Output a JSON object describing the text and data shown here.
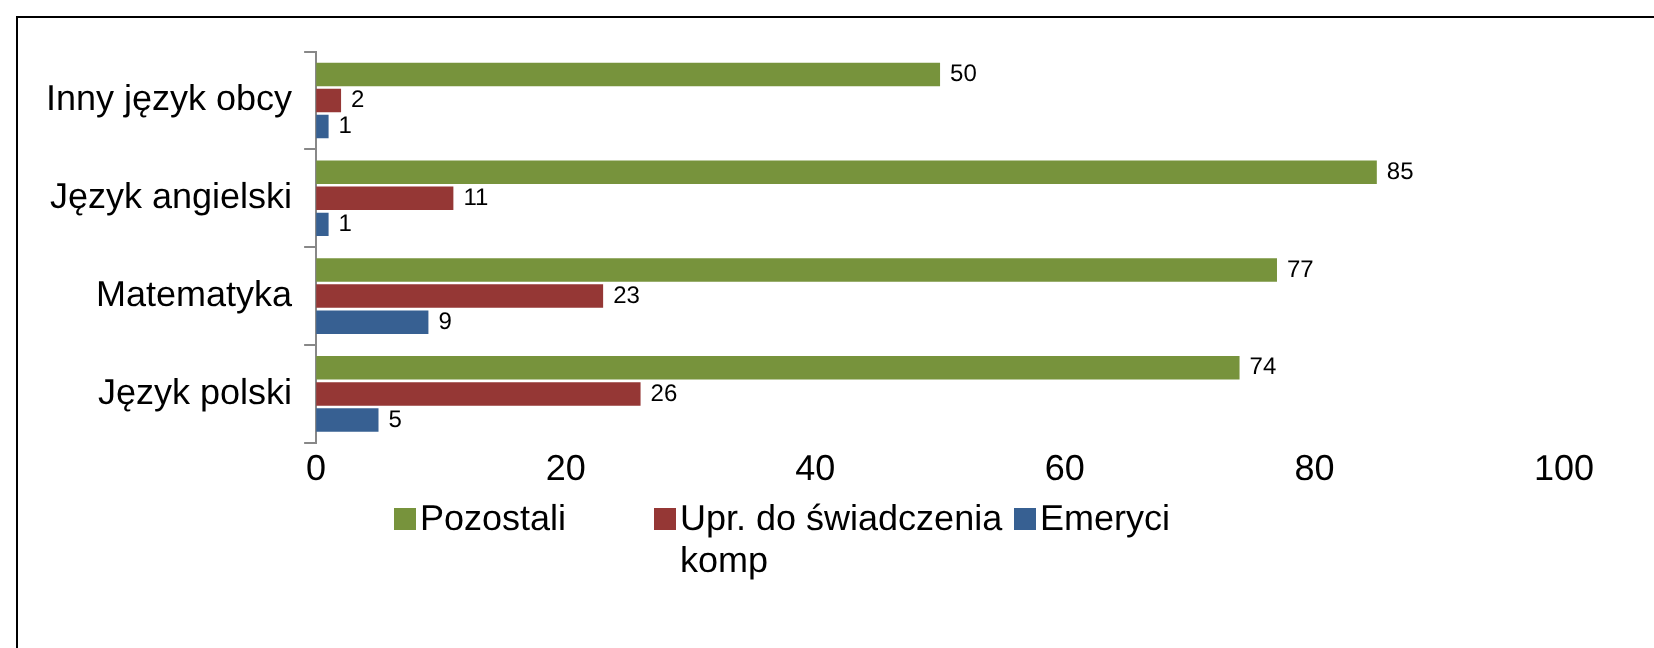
{
  "chart_data": {
    "type": "bar",
    "orientation": "horizontal",
    "categories": [
      "Inny język obcy",
      "Język angielski",
      "Matematyka",
      "Język polski"
    ],
    "series": [
      {
        "name": "Pozostali",
        "color": "#77933c",
        "values": [
          50,
          85,
          77,
          74
        ]
      },
      {
        "name": "Upr. do świadczenia komp",
        "color": "#953735",
        "values": [
          2,
          11,
          23,
          26
        ]
      },
      {
        "name": "Emeryci",
        "color": "#376092",
        "values": [
          1,
          1,
          9,
          5
        ]
      }
    ],
    "xlim": [
      0,
      100
    ],
    "xticks": [
      0,
      20,
      40,
      60,
      80,
      100
    ],
    "grid": false,
    "legend": "bottom",
    "data_labels": true
  }
}
